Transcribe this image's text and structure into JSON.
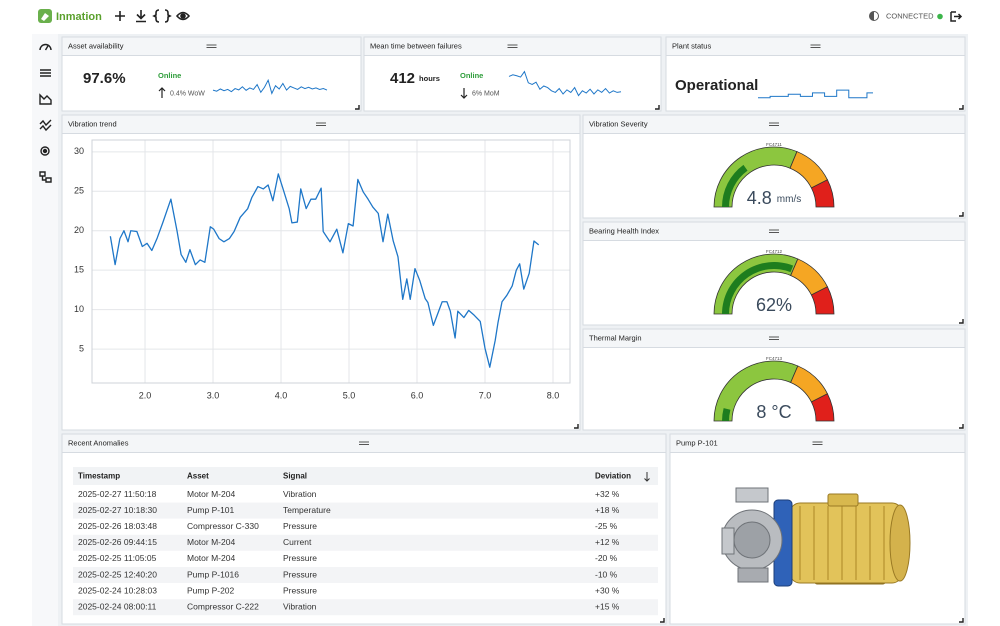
{
  "header": {
    "brand": "Inmation",
    "status": "CONNECTED"
  },
  "kpis": [
    {
      "title": "Asset availability",
      "value": "97.6%",
      "state": "Online",
      "change": "0.4% WoW",
      "sparkline": [
        45,
        40,
        50,
        42,
        48,
        38,
        52,
        46,
        60,
        44,
        55,
        48,
        70,
        35,
        58,
        90,
        30,
        65,
        50,
        75,
        45,
        62,
        55,
        48,
        60,
        52,
        58,
        50,
        55,
        48,
        52,
        45
      ],
      "range": [
        0,
        100
      ]
    },
    {
      "title": "Mean time between failures",
      "value": "412",
      "unit": "hours",
      "state": "Online",
      "change": "6% MoM",
      "sparkline": [
        80,
        85,
        82,
        78,
        95,
        60,
        55,
        62,
        40,
        50,
        45,
        35,
        30,
        42,
        25,
        38,
        30,
        45,
        20,
        35,
        28,
        40,
        25,
        38,
        30,
        42,
        28,
        35,
        30,
        32
      ],
      "range": [
        0,
        100
      ]
    }
  ],
  "plant_status": {
    "title": "Plant status",
    "value": "Operational",
    "sparkline": [
      30,
      30,
      40,
      40,
      40,
      55,
      55,
      40,
      40,
      65,
      65,
      40,
      40,
      85,
      85,
      30,
      30,
      30,
      65,
      65
    ],
    "range": [
      0,
      100
    ]
  },
  "chart_data": {
    "type": "line",
    "title": "Vibration trend",
    "color": "#1f77c8",
    "grid": true,
    "x": [
      1.49,
      1.56,
      1.63,
      1.69,
      1.75,
      1.79,
      1.88,
      1.96,
      2.03,
      2.1,
      2.18,
      2.26,
      2.38,
      2.47,
      2.53,
      2.6,
      2.66,
      2.74,
      2.81,
      2.88,
      2.96,
      3.01,
      3.09,
      3.16,
      3.24,
      3.31,
      3.4,
      3.51,
      3.57,
      3.66,
      3.74,
      3.81,
      3.88,
      3.96,
      4.03,
      4.12,
      4.16,
      4.24,
      4.29,
      4.37,
      4.44,
      4.51,
      4.59,
      4.62,
      4.72,
      4.82,
      4.91,
      4.99,
      5.06,
      5.13,
      5.21,
      5.28,
      5.35,
      5.43,
      5.5,
      5.57,
      5.65,
      5.72,
      5.79,
      5.85,
      5.9,
      5.97,
      6.04,
      6.12,
      6.16,
      6.24,
      6.31,
      6.37,
      6.44,
      6.49,
      6.56,
      6.6,
      6.69,
      6.76,
      6.84,
      6.93,
      7.0,
      7.07,
      7.15,
      7.19,
      7.25,
      7.32,
      7.4,
      7.46,
      7.51,
      7.57,
      7.65,
      7.72,
      7.79
    ],
    "values": [
      19.3,
      15.7,
      19,
      20,
      18.6,
      20,
      19.9,
      18,
      18.4,
      17.5,
      19.1,
      21,
      24,
      20,
      17,
      16,
      17.6,
      15.7,
      16.3,
      16,
      20.5,
      20.2,
      19,
      18.6,
      19,
      19.9,
      21.7,
      22.8,
      24.2,
      25.6,
      25.3,
      25.8,
      23.8,
      27.2,
      25.3,
      22.8,
      21,
      21.1,
      25.3,
      22.8,
      24,
      24,
      25.4,
      19.9,
      18.6,
      20.2,
      17.2,
      20.9,
      20.6,
      26.5,
      24.9,
      24,
      23,
      22.2,
      18.6,
      22.1,
      18.7,
      16.7,
      11.3,
      13.9,
      11.3,
      15.2,
      13.7,
      11.4,
      10.9,
      8,
      9.6,
      11,
      11,
      9.8,
      6.4,
      9.8,
      9,
      9.9,
      9.3,
      8.5,
      5.1,
      2.7,
      6.1,
      8.3,
      11,
      11.8,
      13,
      15,
      15.8,
      12.6,
      14.6,
      18.7,
      18.2
    ],
    "xlim": [
      1.22,
      8.25
    ],
    "ylim": [
      0.7,
      31.5
    ],
    "xticks": [
      {
        "value": 2,
        "label": "2.0"
      },
      {
        "value": 3,
        "label": "3.0"
      },
      {
        "value": 4,
        "label": "4.0"
      },
      {
        "value": 5,
        "label": "5.0"
      },
      {
        "value": 6,
        "label": "6.0"
      },
      {
        "value": 7,
        "label": "7.0"
      },
      {
        "value": 8,
        "label": "8.0"
      }
    ],
    "yticks": [
      5,
      10,
      15,
      20,
      25,
      30
    ]
  },
  "gauges": [
    {
      "title": "Vibration Severity",
      "tag": "FC4711",
      "value": 4.8,
      "value_label": "4.8",
      "unit": "mm/s",
      "min": 0,
      "max": 16,
      "bands": [
        {
          "to": 10,
          "color": "#8cc63f"
        },
        {
          "to": 13.6,
          "color": "#f5a623"
        },
        {
          "to": 16,
          "color": "#e0201b"
        }
      ]
    },
    {
      "title": "Bearing Health Index",
      "tag": "FC4712",
      "value": 62,
      "value_label": "62%",
      "min": 0,
      "max": 100,
      "bands": [
        {
          "to": 63,
          "color": "#8cc63f"
        },
        {
          "to": 85,
          "color": "#f5a623"
        },
        {
          "to": 100,
          "color": "#e0201b"
        }
      ]
    },
    {
      "title": "Thermal Margin",
      "tag": "FC4713",
      "value": 8,
      "value_label": "8",
      "unit": "°C",
      "min": 0,
      "max": 100,
      "bands": [
        {
          "to": 63,
          "color": "#8cc63f"
        },
        {
          "to": 85,
          "color": "#f5a623"
        },
        {
          "to": 100,
          "color": "#e0201b"
        }
      ]
    }
  ],
  "anomalies": {
    "title": "Recent Anomalies",
    "columns": [
      "Timestamp",
      "Asset",
      "Signal",
      "Deviation"
    ],
    "rows": [
      [
        "2025-02-27 11:50:18",
        "Motor M-204",
        "Vibration",
        "+32 %"
      ],
      [
        "2025-02-27 10:18:30",
        "Pump P-101",
        "Temperature",
        "+18 %"
      ],
      [
        "2025-02-26 18:03:48",
        "Compressor C-330",
        "Pressure",
        "-25 %"
      ],
      [
        "2025-02-26 09:44:15",
        "Motor M-204",
        "Current",
        "+12 %"
      ],
      [
        "2025-02-25 11:05:05",
        "Motor M-204",
        "Pressure",
        "-20 %"
      ],
      [
        "2025-02-25 12:40:20",
        "Pump P-1016",
        "Pressure",
        "-10 %"
      ],
      [
        "2025-02-24 10:28:03",
        "Pump P-202",
        "Pressure",
        "+30 %"
      ],
      [
        "2025-02-24 08:00:11",
        "Compressor C-222",
        "Vibration",
        "+15 %"
      ]
    ]
  },
  "pump": {
    "title": "Pump P-101"
  }
}
